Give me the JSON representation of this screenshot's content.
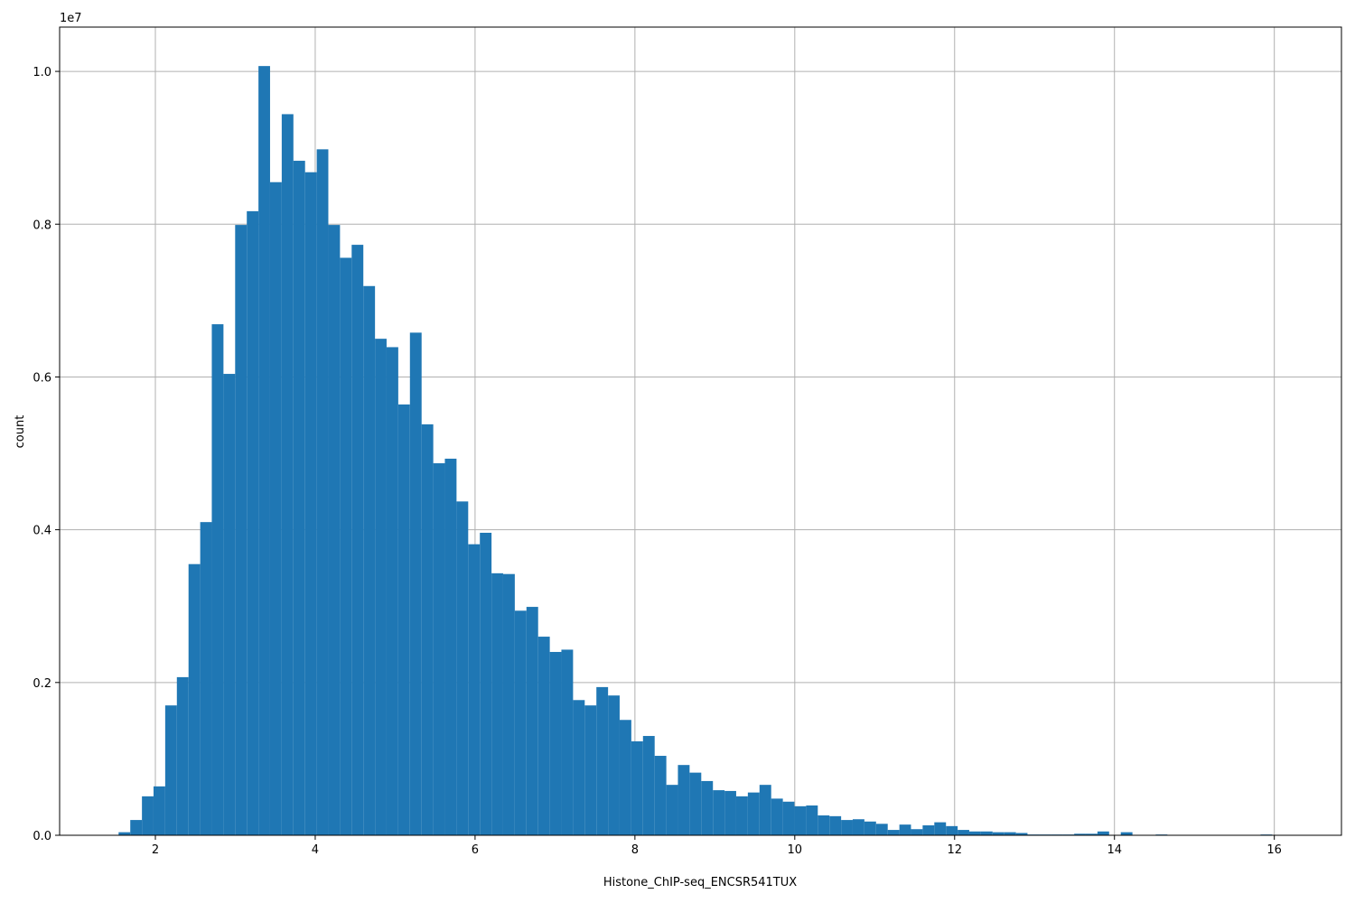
{
  "chart_data": {
    "type": "histogram",
    "x_label": "Histone_ChIP-seq_ENCSR541TUX",
    "y_label": "count",
    "y_offset_label": "1e7",
    "color": "#1f77b4",
    "grid": true,
    "bins": [
      1.54,
      1.686,
      1.832,
      1.977,
      2.123,
      2.269,
      2.415,
      2.561,
      2.706,
      2.852,
      2.998,
      3.144,
      3.29,
      3.435,
      3.581,
      3.727,
      3.873,
      4.019,
      4.164,
      4.31,
      4.456,
      4.602,
      4.748,
      4.893,
      5.039,
      5.185,
      5.331,
      5.477,
      5.622,
      5.768,
      5.914,
      6.06,
      6.206,
      6.351,
      6.497,
      6.643,
      6.789,
      6.935,
      7.08,
      7.226,
      7.372,
      7.518,
      7.664,
      7.809,
      7.955,
      8.101,
      8.247,
      8.393,
      8.538,
      8.684,
      8.83,
      8.976,
      9.122,
      9.267,
      9.413,
      9.559,
      9.705,
      9.851,
      9.996,
      10.142,
      10.288,
      10.434,
      10.58,
      10.725,
      10.871,
      11.017,
      11.163,
      11.309,
      11.454,
      11.6,
      11.746,
      11.892,
      12.038,
      12.183,
      12.329,
      12.475,
      12.621,
      12.767,
      12.912,
      13.058,
      13.204,
      13.35,
      13.496,
      13.641,
      13.787,
      13.933,
      14.079,
      14.225,
      14.37,
      14.516,
      14.662,
      14.808,
      14.954,
      15.099,
      15.245,
      15.391,
      15.537,
      15.683,
      15.828,
      15.974,
      16.12
    ],
    "values": [
      40000,
      200000,
      510000,
      640000,
      1700000,
      2070000,
      3550000,
      4100000,
      6690000,
      6040000,
      7990000,
      8170000,
      10070000,
      8550000,
      9440000,
      8830000,
      8680000,
      8980000,
      7990000,
      7560000,
      7730000,
      7190000,
      6500000,
      6390000,
      5640000,
      6580000,
      5380000,
      4870000,
      4930000,
      4370000,
      3810000,
      3960000,
      3430000,
      3420000,
      2940000,
      2990000,
      2600000,
      2400000,
      2430000,
      1770000,
      1700000,
      1940000,
      1830000,
      1510000,
      1230000,
      1300000,
      1040000,
      660000,
      920000,
      820000,
      710000,
      590000,
      580000,
      510000,
      560000,
      660000,
      480000,
      440000,
      380000,
      390000,
      260000,
      250000,
      200000,
      210000,
      180000,
      150000,
      70000,
      140000,
      80000,
      130000,
      170000,
      120000,
      70000,
      50000,
      50000,
      40000,
      40000,
      30000,
      10000,
      10000,
      10000,
      10000,
      20000,
      20000,
      50000,
      0,
      40000,
      0,
      0,
      10000,
      0,
      0,
      0,
      0,
      0,
      0,
      0,
      0,
      10000,
      0
    ],
    "xlim": [
      0.802,
      16.84
    ],
    "ylim": [
      0,
      10580000
    ],
    "xticks": [
      2,
      4,
      6,
      8,
      10,
      12,
      14,
      16
    ],
    "yticks": [
      {
        "value": 0,
        "label": "0.0"
      },
      {
        "value": 2000000,
        "label": "0.2"
      },
      {
        "value": 4000000,
        "label": "0.4"
      },
      {
        "value": 6000000,
        "label": "0.6"
      },
      {
        "value": 8000000,
        "label": "0.8"
      },
      {
        "value": 10000000,
        "label": "1.0"
      }
    ]
  }
}
